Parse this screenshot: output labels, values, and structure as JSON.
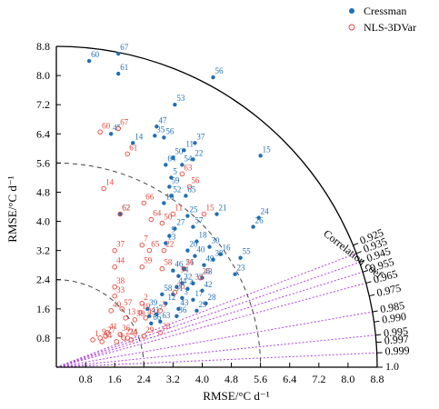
{
  "chart_data": {
    "type": "scatter",
    "subtype": "taylor-diagram",
    "xlabel": "RMSE/°C d⁻¹",
    "ylabel": "RMSE/°C d⁻¹",
    "arc_label": "Correlation coef",
    "max_std": 8.8,
    "xlim": [
      0,
      8.8
    ],
    "ylim": [
      0,
      8.8
    ],
    "x_ticks": [
      "0.8",
      "1.6",
      "2.4",
      "3.2",
      "4.0",
      "4.8",
      "5.6",
      "6.4",
      "7.2",
      "8.0",
      "8.8"
    ],
    "y_ticks": [
      "0.8",
      "1.6",
      "2.4",
      "3.2",
      "4.0",
      "4.8",
      "5.6",
      "6.4",
      "7.2",
      "8.0",
      "8.8"
    ],
    "correlation_ticks": [
      {
        "r": 0.925,
        "label": "0.925"
      },
      {
        "r": 0.935,
        "label": "0.935"
      },
      {
        "r": 0.945,
        "label": "0.945"
      },
      {
        "r": 0.955,
        "label": "0.955"
      },
      {
        "r": 0.965,
        "label": "0.965"
      },
      {
        "r": 0.975,
        "label": "0.975"
      },
      {
        "r": 0.985,
        "label": "0.985"
      },
      {
        "r": 0.99,
        "label": "0.990"
      },
      {
        "r": 0.995,
        "label": "0.995"
      },
      {
        "r": 0.997,
        "label": "0.997"
      },
      {
        "r": 0.999,
        "label": "0.999"
      },
      {
        "r": 1.0,
        "label": "1.0"
      }
    ],
    "correlation_lines": [
      0.935,
      0.945,
      0.955,
      0.965,
      0.985,
      0.995,
      0.999
    ],
    "reference_arcs": [
      2.4,
      5.6
    ],
    "legend_position": "top-right",
    "series": [
      {
        "name": "Cressman",
        "color": "#1f6fb5",
        "marker": "filled-circle",
        "points": [
          {
            "label": "60",
            "x": 0.9,
            "y": 8.4
          },
          {
            "label": "67",
            "x": 1.7,
            "y": 8.6
          },
          {
            "label": "61",
            "x": 1.7,
            "y": 8.05
          },
          {
            "label": "56",
            "x": 4.3,
            "y": 7.95
          },
          {
            "label": "53",
            "x": 3.25,
            "y": 7.2
          },
          {
            "label": "47",
            "x": 2.75,
            "y": 6.6
          },
          {
            "label": "45",
            "x": 1.5,
            "y": 6.4
          },
          {
            "label": "35",
            "x": 2.7,
            "y": 6.35
          },
          {
            "label": "56",
            "x": 2.95,
            "y": 6.3
          },
          {
            "label": "14",
            "x": 2.1,
            "y": 6.15
          },
          {
            "label": "37",
            "x": 3.8,
            "y": 6.15
          },
          {
            "label": "11",
            "x": 3.5,
            "y": 5.95
          },
          {
            "label": "50",
            "x": 3.2,
            "y": 5.75
          },
          {
            "label": "22",
            "x": 3.75,
            "y": 5.7
          },
          {
            "label": "15",
            "x": 5.6,
            "y": 5.8
          },
          {
            "label": "64",
            "x": 3.0,
            "y": 5.55
          },
          {
            "label": "54",
            "x": 3.45,
            "y": 5.55
          },
          {
            "label": "5",
            "x": 3.15,
            "y": 5.2
          },
          {
            "label": "59",
            "x": 3.1,
            "y": 4.95
          },
          {
            "label": "52",
            "x": 3.15,
            "y": 4.7
          },
          {
            "label": "65",
            "x": 3.55,
            "y": 4.7
          },
          {
            "label": "10",
            "x": 2.95,
            "y": 4.5
          },
          {
            "label": "62",
            "x": 1.75,
            "y": 4.2
          },
          {
            "label": "25",
            "x": 3.6,
            "y": 4.15
          },
          {
            "label": "21",
            "x": 4.4,
            "y": 4.2
          },
          {
            "label": "24",
            "x": 5.55,
            "y": 4.1
          },
          {
            "label": "26",
            "x": 5.4,
            "y": 3.85
          },
          {
            "label": "27",
            "x": 3.25,
            "y": 3.8
          },
          {
            "label": "57",
            "x": 3.75,
            "y": 3.85
          },
          {
            "label": "9",
            "x": 3.1,
            "y": 3.6
          },
          {
            "label": "13",
            "x": 3.0,
            "y": 3.4
          },
          {
            "label": "18",
            "x": 3.85,
            "y": 3.45
          },
          {
            "label": "30",
            "x": 4.2,
            "y": 3.3
          },
          {
            "label": "16",
            "x": 4.5,
            "y": 3.1
          },
          {
            "label": "20",
            "x": 3.6,
            "y": 3.2
          },
          {
            "label": "40",
            "x": 3.8,
            "y": 3.05
          },
          {
            "label": "38",
            "x": 4.3,
            "y": 2.95
          },
          {
            "label": "55",
            "x": 5.05,
            "y": 3.0
          },
          {
            "label": "49",
            "x": 4.05,
            "y": 2.8
          },
          {
            "label": "51",
            "x": 3.5,
            "y": 2.7
          },
          {
            "label": "46",
            "x": 3.2,
            "y": 2.65
          },
          {
            "label": "34",
            "x": 3.35,
            "y": 2.5
          },
          {
            "label": "48",
            "x": 4.0,
            "y": 2.45
          },
          {
            "label": "23",
            "x": 4.9,
            "y": 2.55
          },
          {
            "label": "32",
            "x": 3.45,
            "y": 2.3
          },
          {
            "label": "33",
            "x": 3.75,
            "y": 2.3
          },
          {
            "label": "44",
            "x": 3.3,
            "y": 2.2
          },
          {
            "label": "4",
            "x": 3.6,
            "y": 2.15
          },
          {
            "label": "42",
            "x": 4.0,
            "y": 2.1
          },
          {
            "label": "31",
            "x": 3.2,
            "y": 2.0
          },
          {
            "label": "58",
            "x": 2.9,
            "y": 2.0
          },
          {
            "label": "3",
            "x": 3.45,
            "y": 1.9
          },
          {
            "label": "17",
            "x": 3.75,
            "y": 1.85
          },
          {
            "label": "12",
            "x": 3.0,
            "y": 1.75
          },
          {
            "label": "43",
            "x": 3.35,
            "y": 1.6
          },
          {
            "label": "28",
            "x": 4.1,
            "y": 1.75
          },
          {
            "label": "29",
            "x": 3.85,
            "y": 1.55
          },
          {
            "label": "36",
            "x": 3.3,
            "y": 1.4
          },
          {
            "label": "7",
            "x": 2.75,
            "y": 1.45
          },
          {
            "label": "39",
            "x": 2.5,
            "y": 1.6
          },
          {
            "label": "41",
            "x": 2.55,
            "y": 1.4
          },
          {
            "label": "63",
            "x": 2.85,
            "y": 1.25
          },
          {
            "label": "66",
            "x": 2.6,
            "y": 1.2
          }
        ]
      },
      {
        "name": "NLS-3DVar",
        "color": "#e8463a",
        "marker": "open-circle",
        "points": [
          {
            "label": "60",
            "x": 1.2,
            "y": 6.45
          },
          {
            "label": "67",
            "x": 1.7,
            "y": 6.55
          },
          {
            "label": "61",
            "x": 1.95,
            "y": 5.85
          },
          {
            "label": "63",
            "x": 3.45,
            "y": 5.3
          },
          {
            "label": "56",
            "x": 3.65,
            "y": 4.95
          },
          {
            "label": "14",
            "x": 1.3,
            "y": 4.9
          },
          {
            "label": "66",
            "x": 2.4,
            "y": 4.5
          },
          {
            "label": "15",
            "x": 4.05,
            "y": 4.2
          },
          {
            "label": "62",
            "x": 1.75,
            "y": 4.2
          },
          {
            "label": "11",
            "x": 3.2,
            "y": 4.2
          },
          {
            "label": "64",
            "x": 2.6,
            "y": 4.05
          },
          {
            "label": "50",
            "x": 2.9,
            "y": 3.95
          },
          {
            "label": "37",
            "x": 1.6,
            "y": 3.2
          },
          {
            "label": "7",
            "x": 2.35,
            "y": 3.35
          },
          {
            "label": "65",
            "x": 2.55,
            "y": 3.2
          },
          {
            "label": "22",
            "x": 2.95,
            "y": 3.2
          },
          {
            "label": "44",
            "x": 1.6,
            "y": 2.75
          },
          {
            "label": "59",
            "x": 2.35,
            "y": 2.75
          },
          {
            "label": "58",
            "x": 2.9,
            "y": 2.7
          },
          {
            "label": "26",
            "x": 3.5,
            "y": 2.7
          },
          {
            "label": "25",
            "x": 3.95,
            "y": 2.45
          },
          {
            "label": "38",
            "x": 1.6,
            "y": 2.2
          },
          {
            "label": "30",
            "x": 3.25,
            "y": 2.05
          },
          {
            "label": "33",
            "x": 1.6,
            "y": 1.95
          },
          {
            "label": "2",
            "x": 2.35,
            "y": 1.75
          },
          {
            "label": "40",
            "x": 1.5,
            "y": 1.55
          },
          {
            "label": "57",
            "x": 1.8,
            "y": 1.6
          },
          {
            "label": "19",
            "x": 2.3,
            "y": 1.5
          },
          {
            "label": "5",
            "x": 2.85,
            "y": 1.55
          },
          {
            "label": "13",
            "x": 1.9,
            "y": 1.35
          },
          {
            "label": "39",
            "x": 2.15,
            "y": 1.3
          },
          {
            "label": "43",
            "x": 2.45,
            "y": 1.35
          },
          {
            "label": "41",
            "x": 1.4,
            "y": 0.95
          },
          {
            "label": "36",
            "x": 1.75,
            "y": 0.9
          },
          {
            "label": "28",
            "x": 2.85,
            "y": 0.95
          },
          {
            "label": "29",
            "x": 2.4,
            "y": 0.85
          },
          {
            "label": "24",
            "x": 1.95,
            "y": 0.8
          },
          {
            "label": "1",
            "x": 1.0,
            "y": 0.75
          },
          {
            "label": "34",
            "x": 1.25,
            "y": 0.7
          },
          {
            "label": "4",
            "x": 1.65,
            "y": 0.7
          },
          {
            "label": "6",
            "x": 2.05,
            "y": 0.75
          },
          {
            "label": "27",
            "x": 1.35,
            "y": 0.85
          },
          {
            "label": "9",
            "x": 1.2,
            "y": 0.8
          },
          {
            "label": "21",
            "x": 1.85,
            "y": 0.8
          }
        ]
      }
    ]
  }
}
